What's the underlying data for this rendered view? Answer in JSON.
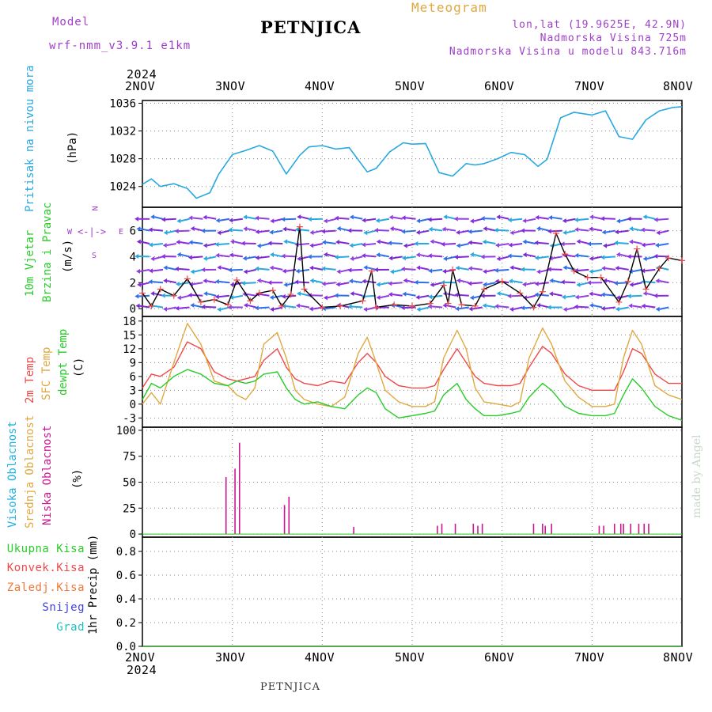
{
  "header": {
    "model_label": "Model",
    "model_name": "wrf-nmm_v3.9.1 e1km",
    "station": "PETNJICA",
    "product": "Meteogram",
    "lonlat": "lon,lat (19.9625E, 42.9N)",
    "elevation": "Nadmorska Visina 725m",
    "model_elevation": "Nadmorska Visina u modelu 843.716m",
    "footer_station": "PETNJICA",
    "watermark": "made by Angel"
  },
  "colors": {
    "pressure": "#29a8e0",
    "temp2m": "#f04848",
    "sfc": "#e0a840",
    "dew": "#28cc28",
    "high_cloud": "#20b0e0",
    "mid_cloud": "#e0a840",
    "low_cloud": "#cc1890",
    "purple": "#a040c8",
    "black": "#000000"
  },
  "x_axis": {
    "year": "2024",
    "days": [
      "2NOV",
      "3NOV",
      "4NOV",
      "5NOV",
      "6NOV",
      "7NOV",
      "8NOV"
    ]
  },
  "wind_rose": {
    "n": "N",
    "e": "E",
    "s": "S",
    "w": "W"
  },
  "chart_data": [
    {
      "id": "pressure",
      "type": "line",
      "ylabel": "(hPa)",
      "side_label": "Pritisak na nivou mora",
      "ylim": [
        1021,
        1036.4
      ],
      "yticks": [
        1024,
        1028,
        1032,
        1036
      ],
      "x": [
        0,
        0.1,
        0.2,
        0.35,
        0.5,
        0.6,
        0.75,
        0.85,
        1.0,
        1.15,
        1.3,
        1.45,
        1.6,
        1.75,
        1.85,
        2.0,
        2.15,
        2.3,
        2.5,
        2.6,
        2.75,
        2.9,
        3.0,
        3.15,
        3.3,
        3.45,
        3.6,
        3.7,
        3.8,
        3.95,
        4.1,
        4.25,
        4.4,
        4.5,
        4.65,
        4.8,
        5.0,
        5.15,
        5.3,
        5.45,
        5.6,
        5.75,
        5.9,
        6.0
      ],
      "y": [
        1024.3,
        1025.1,
        1024.0,
        1024.4,
        1023.7,
        1022.3,
        1023.1,
        1025.8,
        1028.6,
        1029.2,
        1029.9,
        1029.1,
        1025.8,
        1028.5,
        1029.7,
        1029.9,
        1029.4,
        1029.6,
        1026.1,
        1026.6,
        1029.0,
        1030.3,
        1030.1,
        1030.2,
        1026.0,
        1025.5,
        1027.3,
        1027.1,
        1027.3,
        1028.0,
        1028.9,
        1028.6,
        1026.9,
        1027.9,
        1033.9,
        1034.7,
        1034.3,
        1034.9,
        1031.2,
        1030.8,
        1033.6,
        1034.9,
        1035.4,
        1035.5
      ]
    },
    {
      "id": "wind",
      "type": "line",
      "ylabel": "(m/s)",
      "side_label_1": "10m Vjetar",
      "side_label_2": "Brzina i Pravac",
      "ylim": [
        -0.6,
        7.8
      ],
      "yticks": [
        0,
        2,
        4,
        6
      ],
      "x": [
        0,
        0.1,
        0.2,
        0.35,
        0.5,
        0.65,
        0.8,
        0.95,
        1.05,
        1.2,
        1.3,
        1.45,
        1.55,
        1.65,
        1.75,
        1.8,
        2.0,
        2.2,
        2.45,
        2.55,
        2.6,
        2.8,
        3.0,
        3.2,
        3.35,
        3.4,
        3.45,
        3.55,
        3.7,
        3.8,
        4.0,
        4.2,
        4.35,
        4.45,
        4.6,
        4.7,
        4.8,
        4.95,
        5.1,
        5.3,
        5.4,
        5.5,
        5.6,
        5.75,
        5.85,
        6.0
      ],
      "y": [
        1.2,
        0.2,
        1.5,
        1.0,
        2.3,
        0.5,
        0.7,
        0.3,
        2.2,
        0.6,
        1.2,
        1.4,
        0.2,
        1.1,
        6.3,
        1.5,
        0.1,
        0.2,
        0.6,
        2.9,
        0.1,
        0.3,
        0.2,
        0.4,
        1.8,
        0.4,
        3.0,
        0.3,
        0.2,
        1.5,
        2.1,
        1.2,
        0.1,
        1.3,
        5.8,
        4.2,
        2.9,
        2.4,
        2.4,
        0.5,
        2.1,
        4.6,
        1.5,
        3.1,
        3.9,
        3.7
      ]
    },
    {
      "id": "temperature",
      "type": "line",
      "ylabel": "(C)",
      "side_label_1": "2m Temp",
      "side_label_2": "SFC Temp",
      "side_label_3": "dewpt Temp",
      "ylim": [
        -5,
        19
      ],
      "yticks": [
        -3,
        0,
        3,
        6,
        9,
        12,
        15,
        18
      ],
      "x": [
        0,
        0.1,
        0.2,
        0.35,
        0.5,
        0.65,
        0.8,
        0.95,
        1.05,
        1.15,
        1.25,
        1.35,
        1.5,
        1.6,
        1.7,
        1.8,
        1.95,
        2.1,
        2.25,
        2.4,
        2.5,
        2.6,
        2.7,
        2.85,
        3.0,
        3.15,
        3.25,
        3.35,
        3.5,
        3.6,
        3.7,
        3.8,
        3.95,
        4.1,
        4.2,
        4.3,
        4.45,
        4.55,
        4.7,
        4.85,
        5.0,
        5.15,
        5.25,
        5.35,
        5.45,
        5.55,
        5.7,
        5.85,
        6.0
      ],
      "series": [
        {
          "name": "2m Temp",
          "values": [
            3.5,
            6.5,
            6.0,
            8.0,
            13.5,
            12.0,
            7.0,
            5.5,
            5.0,
            5.5,
            6.0,
            9.5,
            12.0,
            8.0,
            5.5,
            4.5,
            4.0,
            5.0,
            4.5,
            9.0,
            11.0,
            9.0,
            6.0,
            4.0,
            3.5,
            3.5,
            4.0,
            7.5,
            12.0,
            9.0,
            6.0,
            4.5,
            4.0,
            4.0,
            4.5,
            8.0,
            12.5,
            11.0,
            6.5,
            4.0,
            3.0,
            3.0,
            3.0,
            7.0,
            12.0,
            11.0,
            6.5,
            4.5,
            4.5
          ]
        },
        {
          "name": "SFC Temp",
          "values": [
            0.0,
            2.5,
            0.0,
            9.0,
            17.5,
            13.0,
            5.0,
            4.0,
            2.0,
            1.0,
            3.5,
            13.0,
            15.5,
            10.0,
            3.0,
            1.0,
            0.0,
            -0.5,
            1.5,
            11.0,
            14.5,
            9.0,
            3.0,
            0.5,
            -0.5,
            -0.5,
            0.5,
            10.0,
            16.0,
            12.0,
            3.5,
            0.5,
            0.0,
            -0.5,
            0.5,
            10.0,
            16.5,
            13.0,
            5.0,
            1.5,
            -0.5,
            -0.5,
            0.0,
            10.0,
            16.0,
            13.0,
            4.0,
            2.0,
            1.0
          ]
        },
        {
          "name": "dewpt Temp",
          "values": [
            1.0,
            4.5,
            3.5,
            6.0,
            7.5,
            6.5,
            4.5,
            4.0,
            5.0,
            4.5,
            5.0,
            6.5,
            7.0,
            3.5,
            1.0,
            0.0,
            0.5,
            -0.5,
            -1.0,
            2.0,
            3.5,
            2.5,
            -1.0,
            -3.0,
            -2.5,
            -2.0,
            -1.5,
            2.0,
            4.5,
            1.0,
            -1.0,
            -2.5,
            -2.5,
            -2.0,
            -1.5,
            1.5,
            4.5,
            3.0,
            -0.5,
            -2.0,
            -2.5,
            -2.5,
            -2.0,
            2.0,
            5.5,
            3.5,
            -0.5,
            -2.5,
            -3.5
          ]
        }
      ]
    },
    {
      "id": "cloud",
      "type": "bar",
      "ylabel": "(%)",
      "side_label_1": "Visoka Oblacnost",
      "side_label_2": "Srednja Oblacnost",
      "side_label_3": "Niska Oblacnost",
      "ylim": [
        -3,
        103
      ],
      "yticks": [
        0,
        25,
        50,
        75,
        100
      ],
      "x": [
        0.93,
        1.03,
        1.08,
        1.58,
        1.63,
        2.35,
        3.28,
        3.33,
        3.48,
        3.68,
        3.73,
        3.78,
        4.35,
        4.45,
        4.48,
        4.55,
        5.08,
        5.13,
        5.25,
        5.32,
        5.35,
        5.43,
        5.52,
        5.58,
        5.63
      ],
      "values": [
        55,
        63,
        88,
        28,
        36,
        7,
        8,
        10,
        10,
        10,
        8,
        10,
        10,
        10,
        8,
        10,
        8,
        8,
        10,
        10,
        10,
        10,
        10,
        10,
        10
      ]
    },
    {
      "id": "precip",
      "type": "bar",
      "ylabel": "1hr Precip (mm)",
      "side_label_1": "Ukupna Kisa",
      "side_label_2": "Konvek.Kisa",
      "side_label_3": "Zaledj.Kisa",
      "side_label_4": "Snijeg",
      "side_label_5": "Grad",
      "ylim": [
        0,
        0.92
      ],
      "yticks": [
        0,
        0.2,
        0.4,
        0.6,
        0.8
      ],
      "values": []
    }
  ]
}
